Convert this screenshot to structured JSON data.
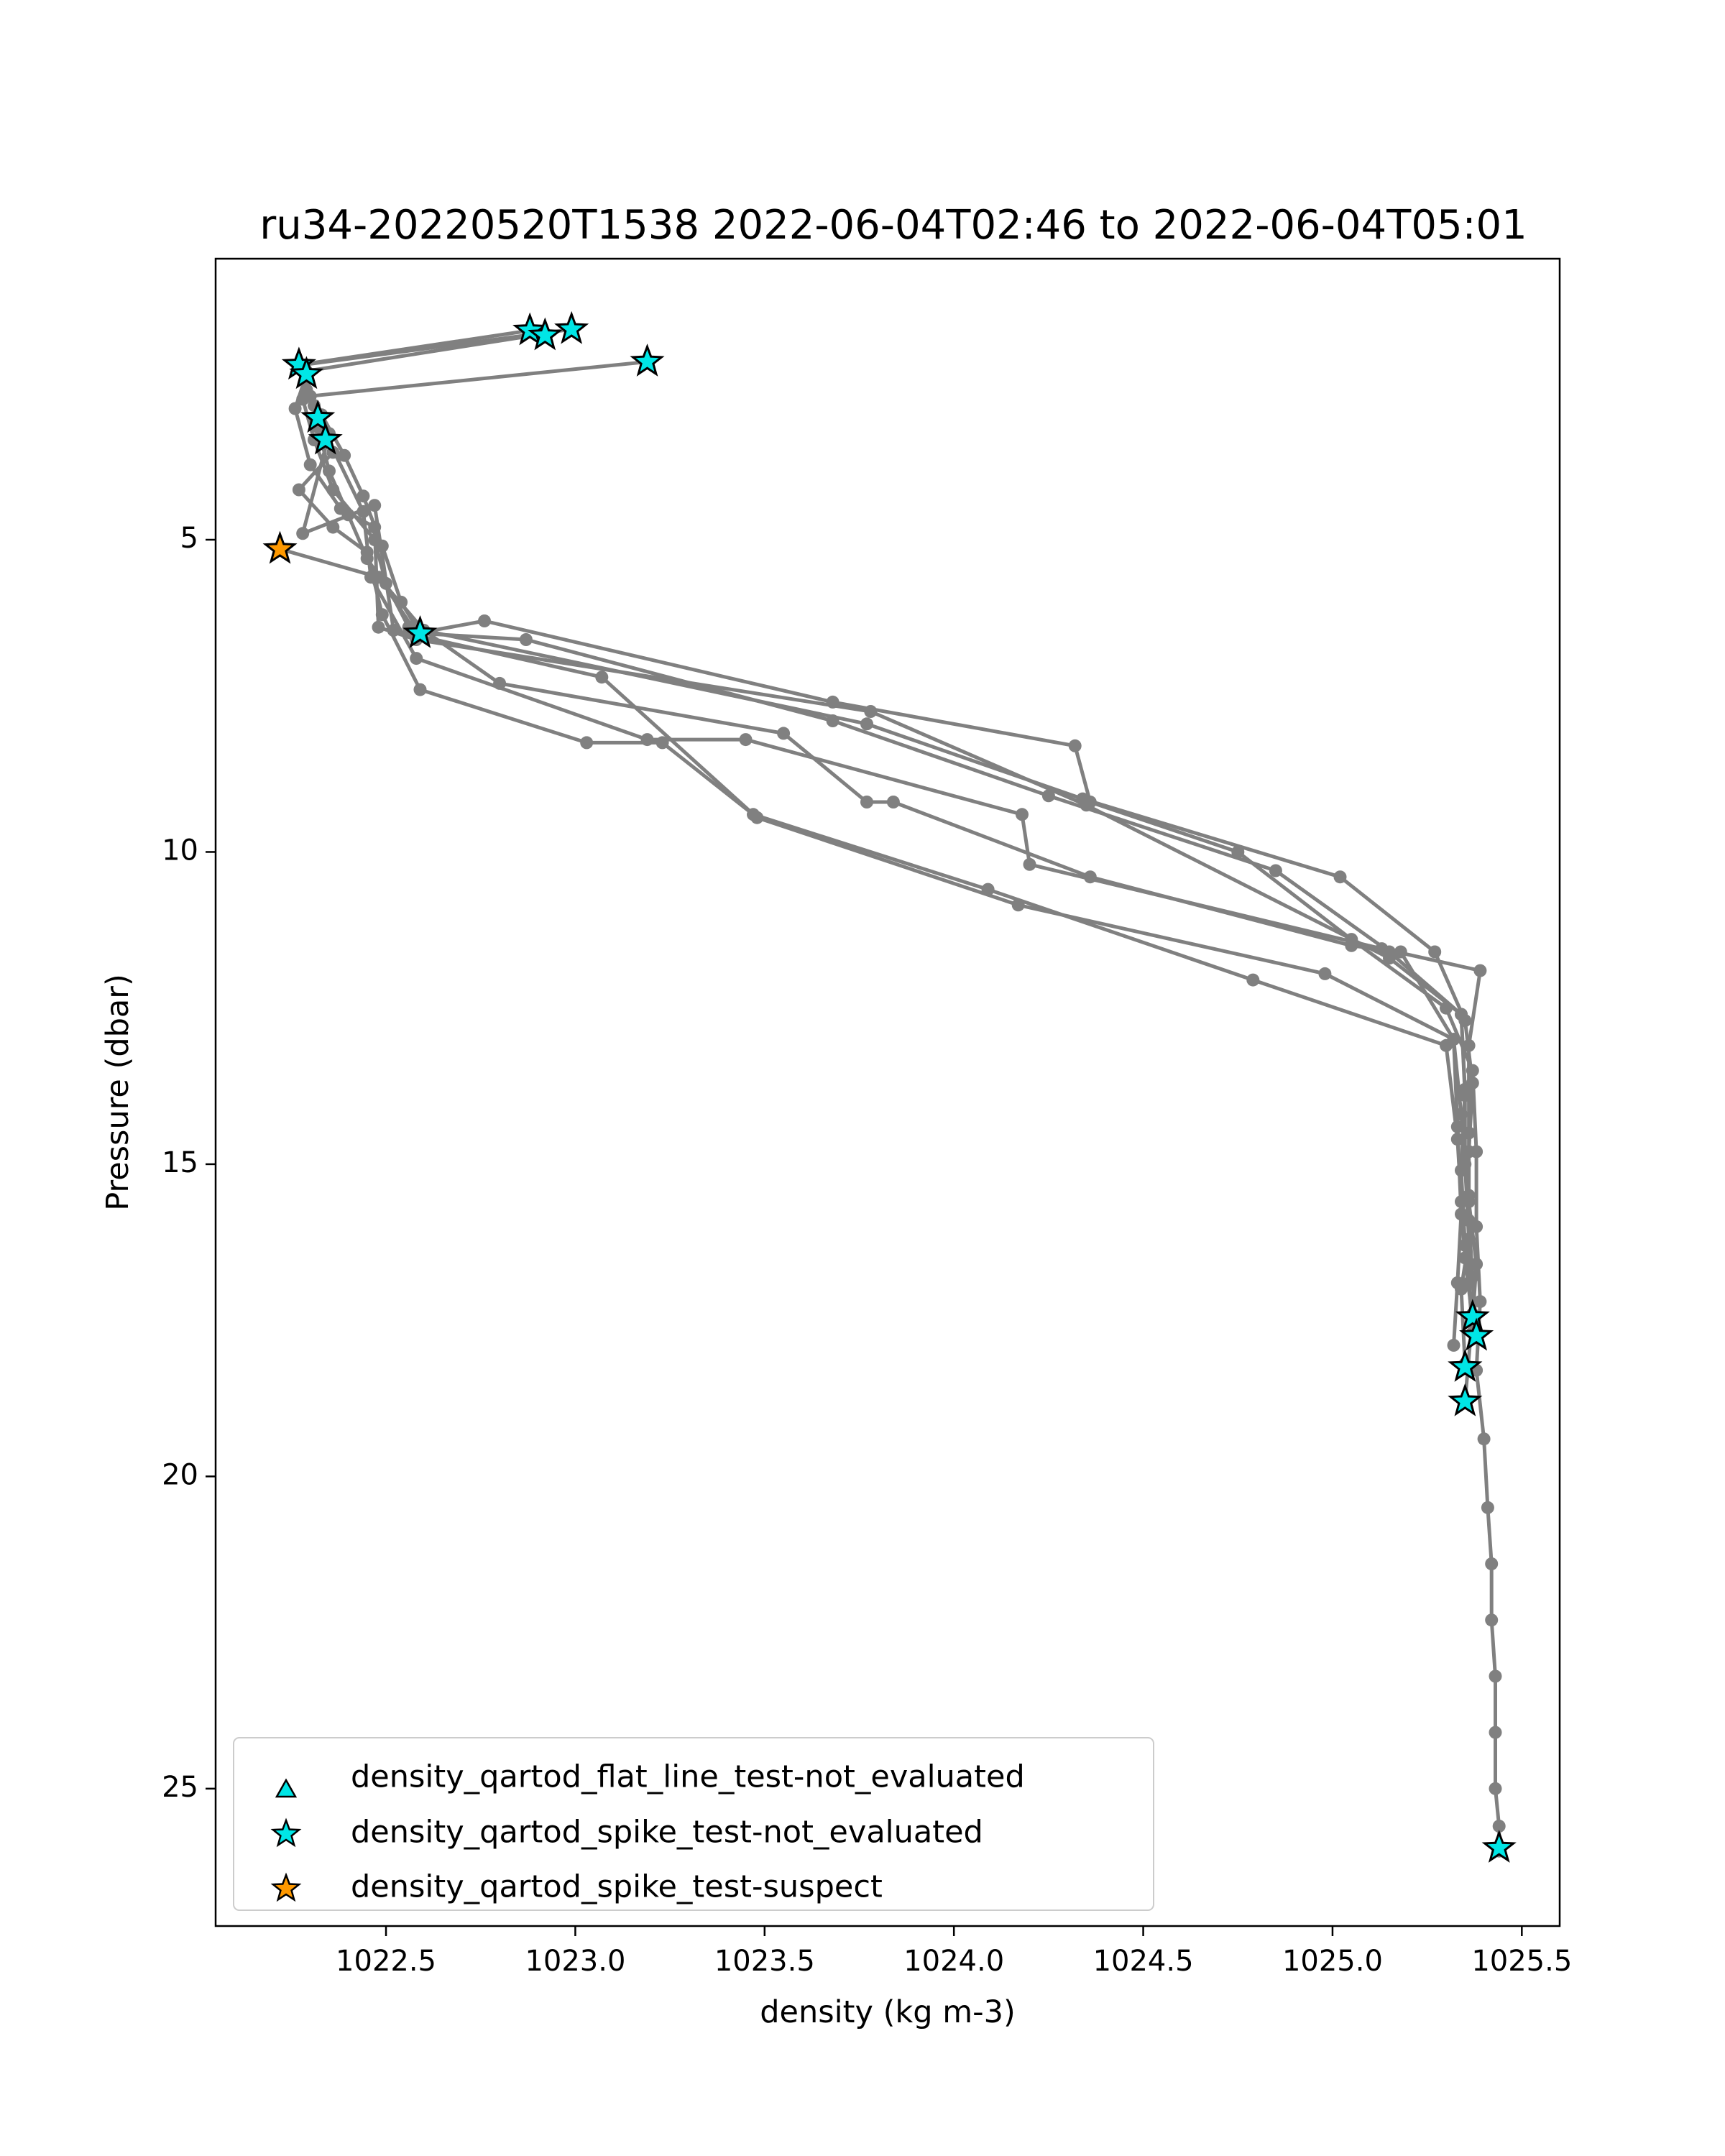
{
  "chart_data": {
    "type": "line",
    "title": "ru34-20220520T1538 2022-06-04T02:46 to 2022-06-04T05:01",
    "xlabel": "density (kg m-3)",
    "ylabel": "Pressure (dbar)",
    "xlim": [
      1022.05,
      1025.6
    ],
    "ylim": [
      27.2,
      0.5
    ],
    "y_inverted": true,
    "xticks": [
      1022.5,
      1023.0,
      1023.5,
      1024.0,
      1024.5,
      1025.0,
      1025.5
    ],
    "xtick_labels": [
      "1022.5",
      "1023.0",
      "1023.5",
      "1024.0",
      "1024.5",
      "1025.0",
      "1025.5"
    ],
    "yticks": [
      5,
      10,
      15,
      20,
      25
    ],
    "ytick_labels": [
      "5",
      "10",
      "15",
      "20",
      "25"
    ],
    "grid": false,
    "line_color": "#808080",
    "series": [
      {
        "points": [
          [
            1023.19,
            2.15
          ],
          [
            1022.3,
            2.7
          ],
          [
            1022.32,
            3.2
          ],
          [
            1022.35,
            3.9
          ],
          [
            1022.4,
            4.6
          ],
          [
            1022.45,
            5.3
          ],
          [
            1022.58,
            6.5
          ],
          [
            1022.76,
            6.3
          ],
          [
            1023.68,
            7.6
          ],
          [
            1024.32,
            8.3
          ],
          [
            1024.36,
            9.2
          ],
          [
            1024.75,
            10.0
          ],
          [
            1025.05,
            11.4
          ],
          [
            1025.3,
            12.5
          ],
          [
            1025.37,
            13.5
          ],
          [
            1025.38,
            14.8
          ],
          [
            1025.38,
            16.0
          ],
          [
            1025.39,
            17.2
          ],
          [
            1025.38,
            18.3
          ],
          [
            1025.4,
            19.4
          ],
          [
            1025.41,
            20.5
          ],
          [
            1025.42,
            21.4
          ],
          [
            1025.42,
            22.3
          ],
          [
            1025.43,
            23.2
          ],
          [
            1025.43,
            24.1
          ],
          [
            1025.43,
            25.0
          ],
          [
            1025.44,
            25.6
          ],
          [
            1025.44,
            26.0
          ]
        ]
      },
      {
        "points": [
          [
            1022.88,
            1.65
          ],
          [
            1022.27,
            2.2
          ],
          [
            1022.29,
            2.6
          ],
          [
            1022.33,
            3.0
          ],
          [
            1022.39,
            3.65
          ],
          [
            1022.44,
            4.3
          ],
          [
            1022.49,
            5.1
          ],
          [
            1022.54,
            6.0
          ],
          [
            1022.59,
            6.5
          ],
          [
            1022.87,
            6.6
          ],
          [
            1023.68,
            7.9
          ],
          [
            1024.25,
            9.1
          ],
          [
            1024.85,
            10.3
          ],
          [
            1025.15,
            11.6
          ],
          [
            1025.34,
            12.6
          ],
          [
            1025.35,
            13.8
          ],
          [
            1025.34,
            15.1
          ],
          [
            1025.35,
            16.3
          ],
          [
            1025.37,
            17.4
          ],
          [
            1025.35,
            18.8
          ]
        ]
      },
      {
        "points": [
          [
            1022.92,
            1.7
          ],
          [
            1022.29,
            2.3
          ],
          [
            1022.28,
            2.75
          ],
          [
            1022.31,
            3.4
          ],
          [
            1022.36,
            4.2
          ],
          [
            1022.47,
            5.0
          ],
          [
            1022.5,
            5.7
          ],
          [
            1022.56,
            6.4
          ],
          [
            1023.77,
            7.95
          ],
          [
            1024.34,
            9.15
          ],
          [
            1025.02,
            10.4
          ],
          [
            1025.27,
            11.6
          ],
          [
            1025.35,
            12.7
          ],
          [
            1025.37,
            13.7
          ],
          [
            1025.36,
            14.8
          ],
          [
            1025.36,
            15.9
          ],
          [
            1025.37,
            16.8
          ],
          [
            1025.38,
            17.7
          ]
        ]
      },
      {
        "points": [
          [
            1022.99,
            1.63
          ],
          [
            1022.28,
            2.2
          ],
          [
            1022.31,
            2.85
          ],
          [
            1022.34,
            3.3
          ],
          [
            1022.44,
            4.55
          ],
          [
            1022.46,
            5.6
          ],
          [
            1022.58,
            6.9
          ],
          [
            1023.19,
            8.2
          ],
          [
            1023.45,
            8.2
          ],
          [
            1024.18,
            9.4
          ],
          [
            1024.2,
            10.2
          ],
          [
            1025.13,
            11.55
          ],
          [
            1025.39,
            11.9
          ],
          [
            1025.36,
            13.1
          ],
          [
            1025.36,
            14.5
          ],
          [
            1025.36,
            15.6
          ],
          [
            1025.38,
            16.6
          ],
          [
            1025.37,
            17.5
          ]
        ]
      },
      {
        "points": [
          [
            1022.29,
            2.35
          ],
          [
            1022.26,
            2.9
          ],
          [
            1022.3,
            3.8
          ],
          [
            1022.38,
            4.5
          ],
          [
            1022.47,
            4.8
          ],
          [
            1022.48,
            6.4
          ],
          [
            1022.58,
            6.6
          ],
          [
            1023.78,
            7.75
          ],
          [
            1024.35,
            9.25
          ],
          [
            1025.15,
            11.7
          ],
          [
            1025.34,
            12.6
          ],
          [
            1025.35,
            13.9
          ],
          [
            1025.35,
            15.0
          ],
          [
            1025.36,
            16.2
          ],
          [
            1025.34,
            17.0
          ],
          [
            1025.35,
            18.2
          ]
        ]
      },
      {
        "points": [
          [
            1022.22,
            5.15
          ],
          [
            1022.48,
            5.6
          ],
          [
            1022.6,
            6.45
          ],
          [
            1022.8,
            7.3
          ],
          [
            1023.55,
            8.1
          ],
          [
            1023.77,
            9.2
          ],
          [
            1023.84,
            9.2
          ],
          [
            1024.36,
            10.4
          ],
          [
            1025.05,
            11.5
          ],
          [
            1025.18,
            11.6
          ],
          [
            1025.32,
            13.0
          ],
          [
            1025.33,
            14.4
          ],
          [
            1025.34,
            15.8
          ],
          [
            1025.33,
            16.9
          ],
          [
            1025.32,
            17.9
          ]
        ]
      },
      {
        "points": [
          [
            1022.36,
            3.6
          ],
          [
            1022.27,
            4.2
          ],
          [
            1022.36,
            4.8
          ],
          [
            1022.45,
            5.2
          ],
          [
            1022.49,
            6.2
          ],
          [
            1022.59,
            7.4
          ],
          [
            1023.03,
            8.25
          ],
          [
            1023.23,
            8.25
          ],
          [
            1023.47,
            9.4
          ],
          [
            1024.09,
            10.6
          ],
          [
            1024.79,
            12.05
          ],
          [
            1025.3,
            13.1
          ],
          [
            1025.33,
            14.6
          ],
          [
            1025.34,
            15.6
          ],
          [
            1025.35,
            16.5
          ],
          [
            1025.37,
            17.5
          ]
        ]
      },
      {
        "points": [
          [
            1022.35,
            3.3
          ],
          [
            1022.28,
            4.9
          ],
          [
            1022.47,
            4.45
          ],
          [
            1022.52,
            6.45
          ],
          [
            1023.07,
            7.2
          ],
          [
            1023.48,
            9.45
          ],
          [
            1024.17,
            10.85
          ],
          [
            1024.98,
            11.95
          ],
          [
            1025.32,
            13.0
          ],
          [
            1025.34,
            14.2
          ],
          [
            1025.36,
            15.5
          ],
          [
            1025.36,
            16.9
          ],
          [
            1025.37,
            17.7
          ]
        ]
      }
    ],
    "markers": [
      {
        "category": "spike-not_evaluated",
        "points": [
          [
            1022.88,
            1.65
          ],
          [
            1022.92,
            1.73
          ],
          [
            1022.99,
            1.63
          ],
          [
            1023.19,
            2.15
          ],
          [
            1022.27,
            2.2
          ],
          [
            1022.29,
            2.35
          ],
          [
            1022.32,
            3.05
          ],
          [
            1022.34,
            3.4
          ],
          [
            1022.59,
            6.5
          ],
          [
            1025.37,
            17.45
          ],
          [
            1025.38,
            17.75
          ],
          [
            1025.35,
            18.25
          ],
          [
            1025.35,
            18.8
          ],
          [
            1025.44,
            25.95
          ]
        ]
      },
      {
        "category": "spike-suspect",
        "points": [
          [
            1022.22,
            5.15
          ]
        ]
      }
    ],
    "legend": {
      "placement": "lower-left",
      "entries": [
        {
          "label": "density_qartod_flat_line_test-not_evaluated",
          "marker": "triangle",
          "color": "#00e6e6"
        },
        {
          "label": "density_qartod_spike_test-not_evaluated",
          "marker": "star",
          "color": "#00e6e6"
        },
        {
          "label": "density_qartod_spike_test-suspect",
          "marker": "star",
          "color": "#ff9900"
        }
      ]
    },
    "colors": {
      "not_evaluated": "#00e6e6",
      "suspect": "#ff9900",
      "line": "#808080",
      "edge": "#000000"
    }
  }
}
